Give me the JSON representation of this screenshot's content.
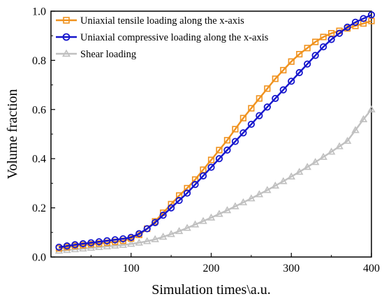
{
  "chart_data": {
    "type": "line",
    "xlabel": "Simulation  times\\a.u.",
    "ylabel": "Volume fraction",
    "xlim": [
      0,
      400
    ],
    "ylim": [
      0,
      1.0
    ],
    "x_ticks": [
      100,
      200,
      300,
      400
    ],
    "x_tick_labels": [
      "100",
      "200",
      "300",
      "400"
    ],
    "y_ticks": [
      0.0,
      0.2,
      0.4,
      0.6,
      0.8,
      1.0
    ],
    "y_tick_labels": [
      "0.0",
      "0.2",
      "0.4",
      "0.6",
      "0.8",
      "1.0"
    ],
    "grid": false,
    "legend_position": "top-left",
    "series": [
      {
        "name": "Uniaxial tensile loading along the x-axis",
        "color": "#F0921E",
        "marker": "square",
        "x": [
          10,
          20,
          30,
          40,
          50,
          60,
          70,
          80,
          90,
          100,
          110,
          120,
          130,
          140,
          150,
          160,
          170,
          180,
          190,
          200,
          210,
          220,
          230,
          240,
          250,
          260,
          270,
          280,
          290,
          300,
          310,
          320,
          330,
          340,
          350,
          360,
          370,
          380,
          390,
          400
        ],
        "values": [
          0.035,
          0.04,
          0.045,
          0.048,
          0.052,
          0.055,
          0.058,
          0.062,
          0.066,
          0.075,
          0.09,
          0.115,
          0.145,
          0.18,
          0.215,
          0.25,
          0.28,
          0.315,
          0.355,
          0.395,
          0.435,
          0.475,
          0.52,
          0.565,
          0.605,
          0.645,
          0.685,
          0.725,
          0.76,
          0.795,
          0.825,
          0.85,
          0.875,
          0.895,
          0.91,
          0.92,
          0.93,
          0.94,
          0.95,
          0.96
        ]
      },
      {
        "name": "Uniaxial compressive loading along the x-axis",
        "color": "#1515CC",
        "marker": "circle",
        "x": [
          10,
          20,
          30,
          40,
          50,
          60,
          70,
          80,
          90,
          100,
          110,
          120,
          130,
          140,
          150,
          160,
          170,
          180,
          190,
          200,
          210,
          220,
          230,
          240,
          250,
          260,
          270,
          280,
          290,
          300,
          310,
          320,
          330,
          340,
          350,
          360,
          370,
          380,
          390,
          400
        ],
        "values": [
          0.04,
          0.045,
          0.05,
          0.054,
          0.058,
          0.062,
          0.066,
          0.07,
          0.074,
          0.08,
          0.095,
          0.115,
          0.14,
          0.17,
          0.2,
          0.23,
          0.26,
          0.295,
          0.33,
          0.365,
          0.4,
          0.435,
          0.47,
          0.505,
          0.54,
          0.575,
          0.61,
          0.645,
          0.68,
          0.715,
          0.75,
          0.785,
          0.82,
          0.855,
          0.885,
          0.91,
          0.935,
          0.955,
          0.97,
          0.985
        ]
      },
      {
        "name": "Shear loading",
        "color": "#C0C0C0",
        "marker": "triangle",
        "x": [
          10,
          20,
          30,
          40,
          50,
          60,
          70,
          80,
          90,
          100,
          110,
          120,
          130,
          140,
          150,
          160,
          170,
          180,
          190,
          200,
          210,
          220,
          230,
          240,
          250,
          260,
          270,
          280,
          290,
          300,
          310,
          320,
          330,
          340,
          350,
          360,
          370,
          380,
          390,
          400
        ],
        "values": [
          0.025,
          0.028,
          0.031,
          0.034,
          0.037,
          0.04,
          0.043,
          0.046,
          0.049,
          0.053,
          0.058,
          0.064,
          0.072,
          0.082,
          0.093,
          0.105,
          0.118,
          0.132,
          0.146,
          0.16,
          0.175,
          0.19,
          0.206,
          0.222,
          0.238,
          0.255,
          0.272,
          0.29,
          0.308,
          0.327,
          0.346,
          0.366,
          0.386,
          0.407,
          0.428,
          0.45,
          0.472,
          0.516,
          0.56,
          0.6
        ]
      }
    ]
  }
}
